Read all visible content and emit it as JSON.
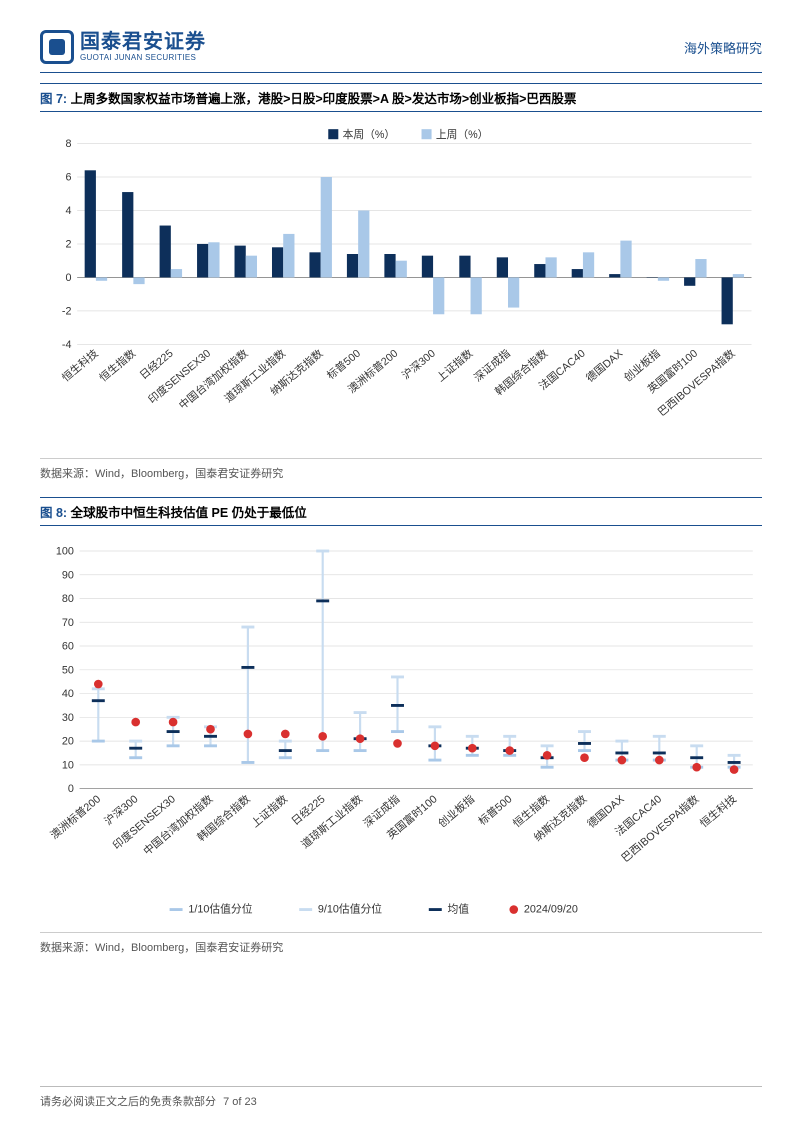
{
  "header": {
    "company_cn": "国泰君安证券",
    "company_en": "GUOTAI JUNAN SECURITIES",
    "section": "海外策略研究"
  },
  "fig7": {
    "label_prefix": "图 7:",
    "title": "上周多数国家权益市场普遍上涨，港股>日股>印度股票>A 股>发达市场>创业板指>巴西股票",
    "legend": {
      "thisweek": "本周（%）",
      "lastweek": "上周（%）"
    },
    "colors": {
      "thisweek": "#0d2f5a",
      "lastweek": "#a9c8e8",
      "grid": "#dddddd",
      "axis": "#888888"
    },
    "ylim": [
      -4,
      8
    ],
    "ytick_step": 2,
    "categories": [
      "恒生科技",
      "恒生指数",
      "日经225",
      "印度SENSEX30",
      "中国台湾加权指数",
      "道琼斯工业指数",
      "纳斯达克指数",
      "标普500",
      "澳洲标普200",
      "沪深300",
      "上证指数",
      "深证成指",
      "韩国综合指数",
      "法国CAC40",
      "德国DAX",
      "创业板指",
      "英国富时100",
      "巴西IBOVESPA指数"
    ],
    "thisweek": [
      6.4,
      5.1,
      3.1,
      2.0,
      1.9,
      1.8,
      1.5,
      1.4,
      1.4,
      1.3,
      1.3,
      1.2,
      0.8,
      0.5,
      0.2,
      0.0,
      -0.5,
      -2.8
    ],
    "lastweek": [
      -0.2,
      -0.4,
      0.5,
      2.1,
      1.3,
      2.6,
      6.0,
      4.0,
      1.0,
      -2.2,
      -2.2,
      -1.8,
      1.2,
      1.5,
      2.2,
      -0.2,
      1.1,
      0.2
    ],
    "source": "数据来源：Wind，Bloomberg，国泰君安证券研究"
  },
  "fig8": {
    "label_prefix": "图 8:",
    "title": "全球股市中恒生科技估值 PE 仍处于最低位",
    "legend": {
      "d10": "1/10估值分位",
      "d90": "9/10估值分位",
      "mean": "均值",
      "dot": "2024/09/20"
    },
    "colors": {
      "d10": "#a9c8e8",
      "d90": "#c8dcf0",
      "mean": "#0d2f5a",
      "dot": "#d9302f",
      "grid": "#dddddd",
      "axis": "#888888"
    },
    "ylim": [
      0,
      100
    ],
    "ytick_step": 10,
    "categories": [
      "澳洲标普200",
      "沪深300",
      "印度SENSEX30",
      "中国台湾加权指数",
      "韩国综合指数",
      "上证指数",
      "日经225",
      "道琼斯工业指数",
      "深证成指",
      "英国富时100",
      "创业板指",
      "标普500",
      "恒生指数",
      "纳斯达克指数",
      "德国DAX",
      "法国CAC40",
      "巴西IBOVESPA指数",
      "恒生科技"
    ],
    "d10": [
      20,
      13,
      18,
      18,
      11,
      13,
      16,
      16,
      24,
      12,
      14,
      14,
      9,
      16,
      12,
      12,
      9,
      9
    ],
    "d90": [
      42,
      20,
      30,
      26,
      68,
      20,
      100,
      32,
      47,
      26,
      22,
      22,
      18,
      24,
      20,
      22,
      18,
      14
    ],
    "mean": [
      37,
      17,
      24,
      22,
      51,
      16,
      79,
      21,
      35,
      18,
      17,
      16,
      13,
      19,
      15,
      15,
      13,
      11
    ],
    "dot": [
      44,
      28,
      28,
      25,
      23,
      23,
      22,
      21,
      19,
      18,
      17,
      16,
      14,
      13,
      12,
      12,
      9,
      8
    ],
    "source": "数据来源：Wind，Bloomberg，国泰君安证券研究"
  },
  "footer": {
    "text": "请务必阅读正文之后的免责条款部分",
    "page": "7 of 23"
  }
}
